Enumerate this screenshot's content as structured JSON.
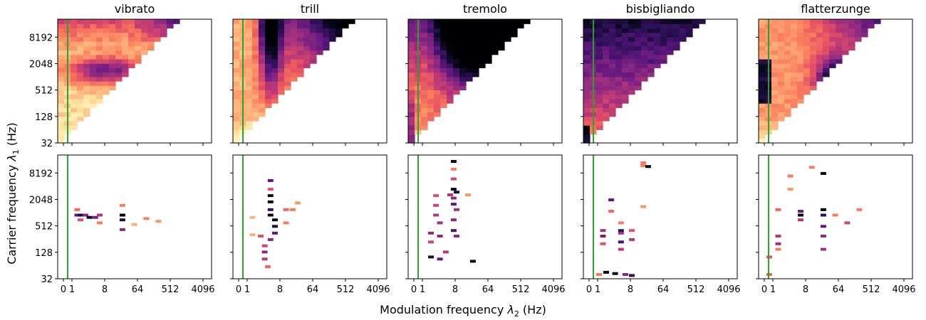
{
  "figure": {
    "ylabel_prefix": "Carrier frequency ",
    "ylabel_symbol": "λ",
    "ylabel_sub": "1",
    "ylabel_unit": " (Hz)",
    "xlabel_prefix": "Modulation frequency ",
    "xlabel_symbol": "λ",
    "xlabel_sub": "2",
    "xlabel_unit": " (Hz)"
  },
  "chart_data": {
    "type": "heatmap",
    "colormap": "magma (light = low, dark = high)",
    "columns": [
      "vibrato",
      "trill",
      "tremolo",
      "bisbigliando",
      "flatterzunge"
    ],
    "rows": [
      "scattering coefficients (top row)",
      "selected / significant coefficients (bottom row)"
    ],
    "x_ticks": [
      "0",
      "1",
      "8",
      "64",
      "512",
      "4096"
    ],
    "y_ticks": [
      "8192",
      "2048",
      "512",
      "128",
      "32"
    ],
    "x_scale": "log2",
    "y_scale": "log2",
    "xlim": [
      0,
      6000
    ],
    "ylim": [
      32,
      21000
    ],
    "reference_line": {
      "x": 1,
      "color": "#2ca02c"
    },
    "valid_region": "triangle: modulation frequency <= carrier frequency",
    "panels": [
      {
        "title": "vibrato",
        "x_bands": [
          0.5,
          1,
          1.5,
          2,
          3,
          4,
          6,
          8,
          12,
          16,
          24,
          32,
          48,
          64,
          96,
          128,
          192,
          256,
          384,
          512,
          768,
          1024,
          1536,
          2048,
          3072
        ],
        "top_description": "mostly light (low energy); dark band near 1024-2048 Hz carrier, 1-64 Hz modulation",
        "bottom_points": [
          [
            1.5,
            1200,
            0.35
          ],
          [
            1.5,
            900,
            0.7
          ],
          [
            2,
            900,
            0.85
          ],
          [
            2,
            700,
            0.4
          ],
          [
            3,
            900,
            0.6
          ],
          [
            4,
            800,
            0.9
          ],
          [
            6,
            800,
            0.65
          ],
          [
            8,
            900,
            0.5
          ],
          [
            8,
            600,
            0.3
          ],
          [
            32,
            900,
            0.95
          ],
          [
            32,
            700,
            0.85
          ],
          [
            32,
            1500,
            0.3
          ],
          [
            32,
            420,
            0.6
          ],
          [
            64,
            550,
            0.2
          ],
          [
            128,
            750,
            0.3
          ],
          [
            256,
            650,
            0.25
          ]
        ]
      },
      {
        "title": "trill",
        "top_description": "dark vertical band at 6-10 Hz modulation across 256-4096 Hz carrier; light at low carrier",
        "bottom_points": [
          [
            6,
            5500,
            0.7
          ],
          [
            6,
            3500,
            0.4
          ],
          [
            6,
            2500,
            0.9
          ],
          [
            6,
            1800,
            0.95
          ],
          [
            6,
            1200,
            0.8
          ],
          [
            6,
            900,
            0.9
          ],
          [
            8,
            700,
            0.95
          ],
          [
            8,
            500,
            0.85
          ],
          [
            8,
            350,
            0.7
          ],
          [
            6,
            250,
            0.6
          ],
          [
            4,
            180,
            0.45
          ],
          [
            4,
            130,
            0.6
          ],
          [
            4,
            90,
            0.5
          ],
          [
            5,
            60,
            0.35
          ],
          [
            3,
            300,
            0.4
          ],
          [
            16,
            1200,
            0.35
          ],
          [
            24,
            1200,
            0.3
          ],
          [
            32,
            1700,
            0.25
          ],
          [
            16,
            600,
            0.3
          ],
          [
            1.5,
            800,
            0.2
          ],
          [
            1.5,
            320,
            0.2
          ]
        ]
      },
      {
        "title": "tremolo",
        "top_description": "dark almost everywhere at high carrier; light region at 32-256 Hz carrier with low modulation",
        "bottom_points": [
          [
            10,
            15000,
            0.95
          ],
          [
            10,
            10000,
            0.3
          ],
          [
            10,
            6000,
            0.45
          ],
          [
            10,
            3500,
            0.95
          ],
          [
            12,
            3000,
            0.85
          ],
          [
            10,
            2200,
            0.6
          ],
          [
            10,
            1600,
            0.7
          ],
          [
            12,
            1200,
            0.55
          ],
          [
            10,
            700,
            0.6
          ],
          [
            10,
            400,
            0.75
          ],
          [
            12,
            300,
            0.6
          ],
          [
            3,
            2500,
            0.4
          ],
          [
            3,
            1500,
            0.45
          ],
          [
            3,
            900,
            0.5
          ],
          [
            4,
            600,
            0.55
          ],
          [
            2,
            350,
            0.6
          ],
          [
            2,
            220,
            0.45
          ],
          [
            4,
            300,
            0.6
          ],
          [
            2,
            100,
            0.85
          ],
          [
            4,
            90,
            0.7
          ],
          [
            6,
            130,
            0.5
          ],
          [
            32,
            80,
            0.95
          ],
          [
            8,
            2600,
            0.5
          ],
          [
            24,
            2600,
            0.25
          ]
        ]
      },
      {
        "title": "bisbigliando",
        "top_description": "medium-to-dark across most cells; lighter at low carrier frequencies; darkest at 32 Hz carrier, 0-1 Hz modulation",
        "bottom_points": [
          [
            1.5,
            400,
            0.55
          ],
          [
            1.5,
            300,
            0.65
          ],
          [
            1.5,
            200,
            0.4
          ],
          [
            3,
            2000,
            0.7
          ],
          [
            3,
            1100,
            0.35
          ],
          [
            6,
            600,
            0.3
          ],
          [
            6,
            350,
            0.55
          ],
          [
            6,
            220,
            0.75
          ],
          [
            6,
            150,
            0.5
          ],
          [
            6,
            400,
            0.8
          ],
          [
            12,
            400,
            0.4
          ],
          [
            12,
            250,
            0.5
          ],
          [
            24,
            12000,
            0.3
          ],
          [
            32,
            11500,
            0.95
          ],
          [
            24,
            14000,
            0.3
          ],
          [
            2,
            45,
            0.95
          ],
          [
            4,
            42,
            0.9
          ],
          [
            8,
            40,
            0.6
          ],
          [
            12,
            38,
            0.8
          ],
          [
            1,
            40,
            0.3
          ],
          [
            24,
            1400,
            0.25
          ]
        ]
      },
      {
        "title": "flatterzunge",
        "top_description": "dark block at 16-128 Hz modulation over 512-4096 Hz carrier; dark strip at 0 Hz modulation",
        "bottom_points": [
          [
            8,
            900,
            0.95
          ],
          [
            8,
            1100,
            0.7
          ],
          [
            8,
            700,
            0.5
          ],
          [
            32,
            8000,
            0.9
          ],
          [
            32,
            1200,
            0.95
          ],
          [
            32,
            900,
            0.8
          ],
          [
            32,
            500,
            0.7
          ],
          [
            32,
            300,
            0.6
          ],
          [
            32,
            150,
            0.55
          ],
          [
            1.5,
            300,
            0.5
          ],
          [
            1.5,
            200,
            0.55
          ],
          [
            1.5,
            150,
            0.3
          ],
          [
            1.5,
            1200,
            0.35
          ],
          [
            4,
            7000,
            0.3
          ],
          [
            4,
            3500,
            0.25
          ],
          [
            16,
            11000,
            0.3
          ],
          [
            64,
            900,
            0.3
          ],
          [
            128,
            600,
            0.45
          ],
          [
            256,
            1200,
            0.3
          ],
          [
            0.5,
            100,
            0.4
          ],
          [
            0.5,
            40,
            0.35
          ]
        ]
      }
    ]
  }
}
